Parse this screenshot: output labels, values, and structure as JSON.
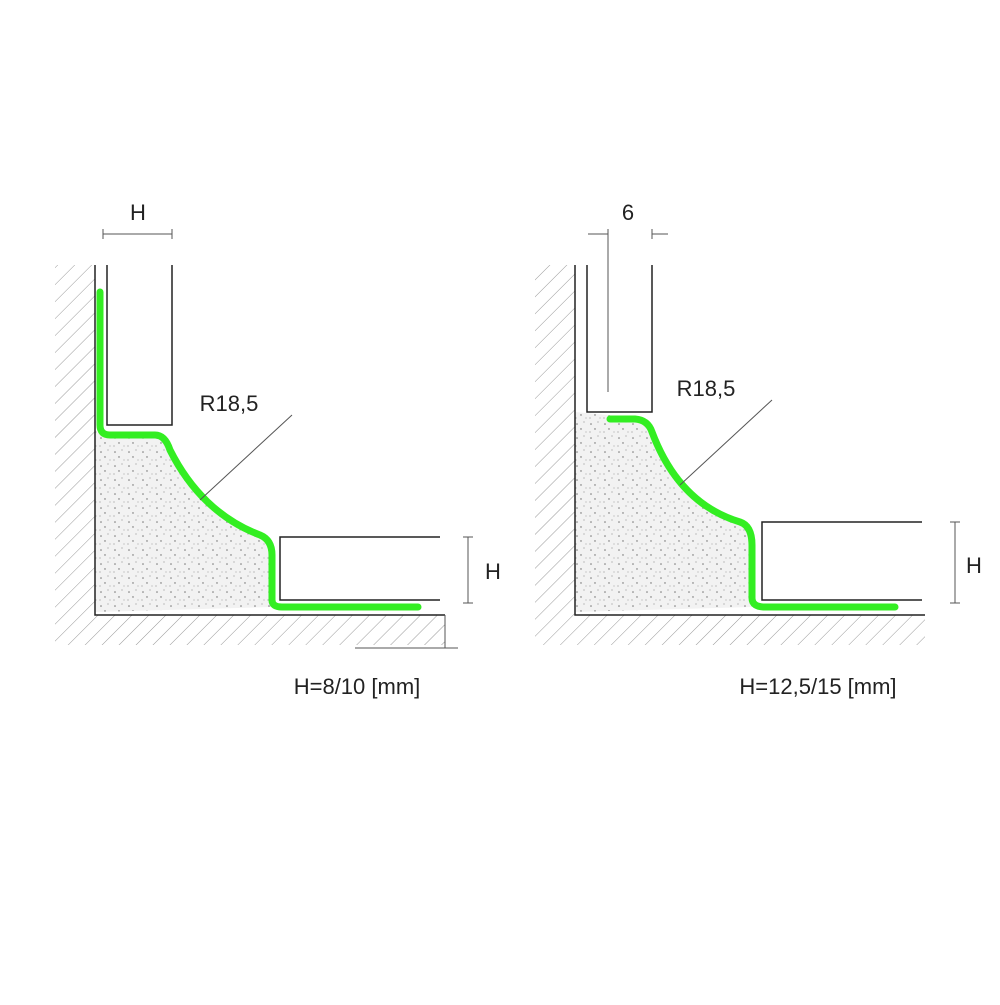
{
  "diagrams": [
    {
      "top_label": "H",
      "radius_label": "R18,5",
      "side_label": "H",
      "caption": "H=8/10 [mm]"
    },
    {
      "top_label": "6",
      "radius_label": "R18,5",
      "side_label": "H",
      "caption": "H=12,5/15 [mm]"
    }
  ]
}
